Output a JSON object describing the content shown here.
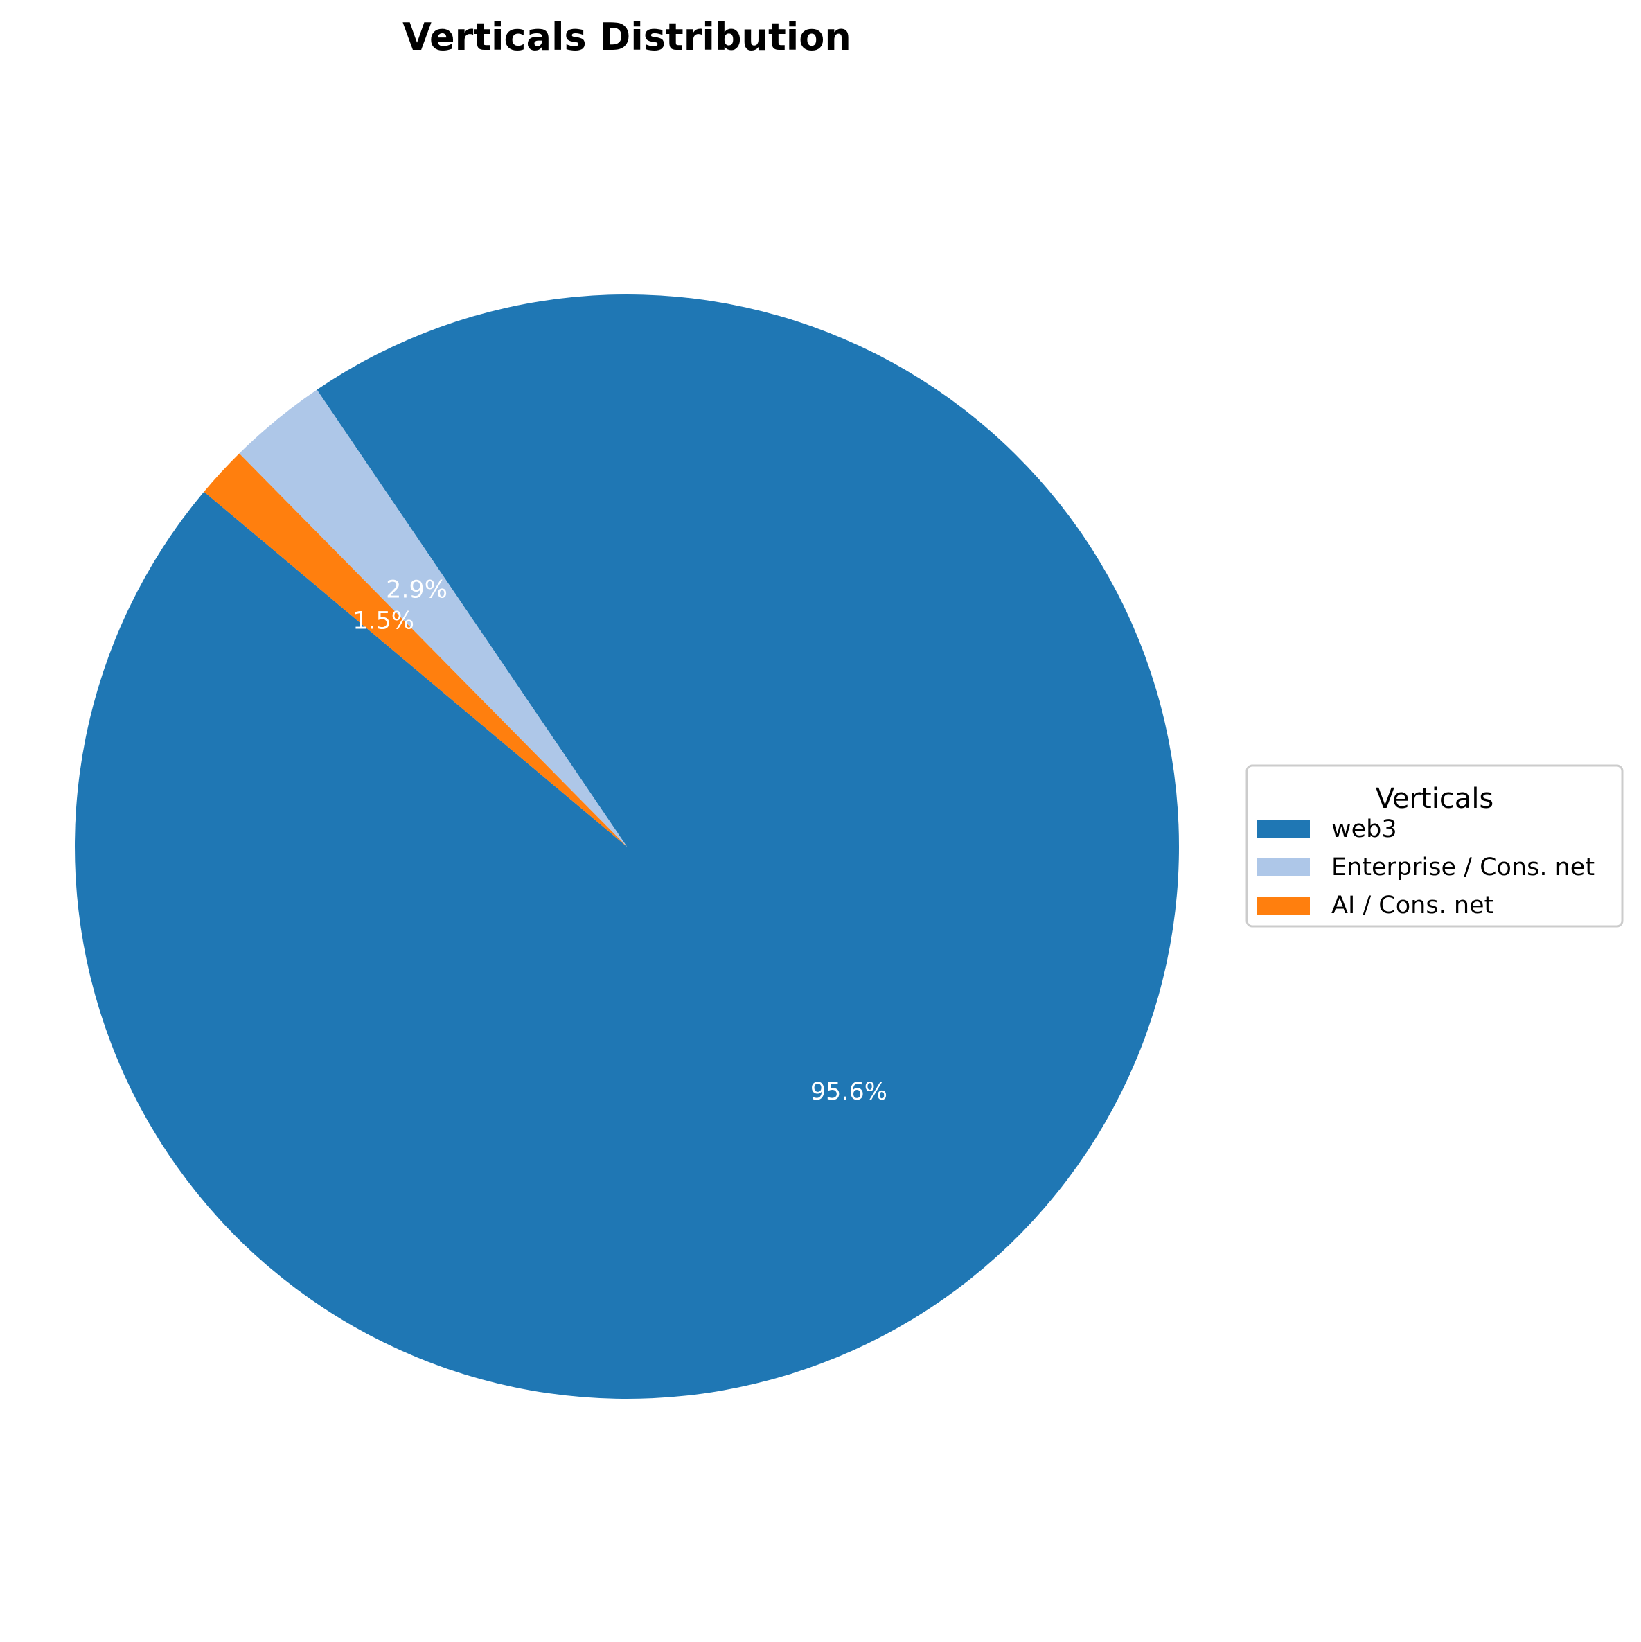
{
  "chart_data": {
    "type": "pie",
    "title": "Verticals Distribution",
    "start_angle_deg": 140,
    "direction": "counterclockwise",
    "slices": [
      {
        "label": "web3",
        "value": 95.6,
        "pct_label": "95.6%",
        "color": "#1f77b4"
      },
      {
        "label": "Enterprise / Cons. net",
        "value": 2.9,
        "pct_label": "2.9%",
        "color": "#aec7e8"
      },
      {
        "label": "AI / Cons. net",
        "value": 1.5,
        "pct_label": "1.5%",
        "color": "#ff7f0e"
      }
    ],
    "legend": {
      "title": "Verticals",
      "placement": "center-right",
      "entries": [
        "web3",
        "Enterprise / Cons. net",
        "AI / Cons. net"
      ]
    }
  }
}
